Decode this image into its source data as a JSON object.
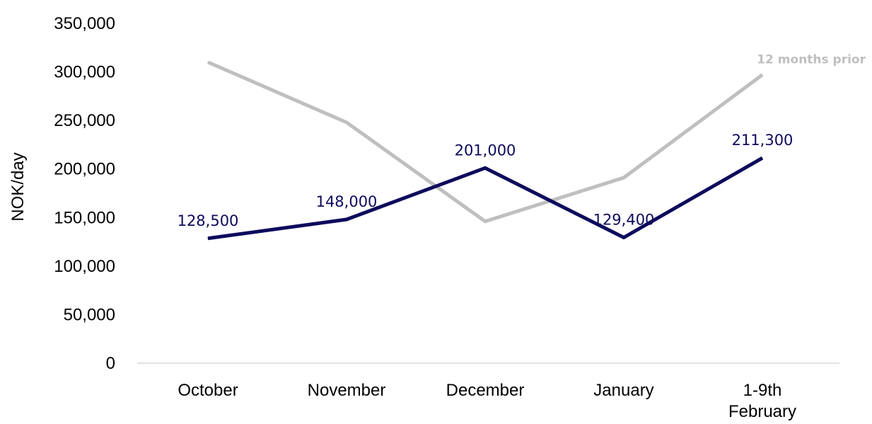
{
  "chart_data": {
    "type": "line",
    "title": "",
    "xlabel": "",
    "ylabel": "NOK/day",
    "ylim": [
      0,
      350000
    ],
    "yticks": [
      "0",
      "50,000",
      "100,000",
      "150,000",
      "200,000",
      "250,000",
      "300,000",
      "350,000"
    ],
    "categories": [
      [
        "October"
      ],
      [
        "November"
      ],
      [
        "December"
      ],
      [
        "January"
      ],
      [
        "1-9th",
        "February"
      ]
    ],
    "grid": false,
    "series": [
      {
        "name": "",
        "color": "#0d0a5c",
        "values": [
          128500,
          148000,
          201000,
          129400,
          211300
        ],
        "data_labels": [
          "128,500",
          "148,000",
          "201,000",
          "129,400",
          "211,300"
        ]
      },
      {
        "name": "12 months prior",
        "color": "#bfbfbf",
        "values": [
          310000,
          248000,
          146000,
          191000,
          297000
        ]
      }
    ]
  }
}
